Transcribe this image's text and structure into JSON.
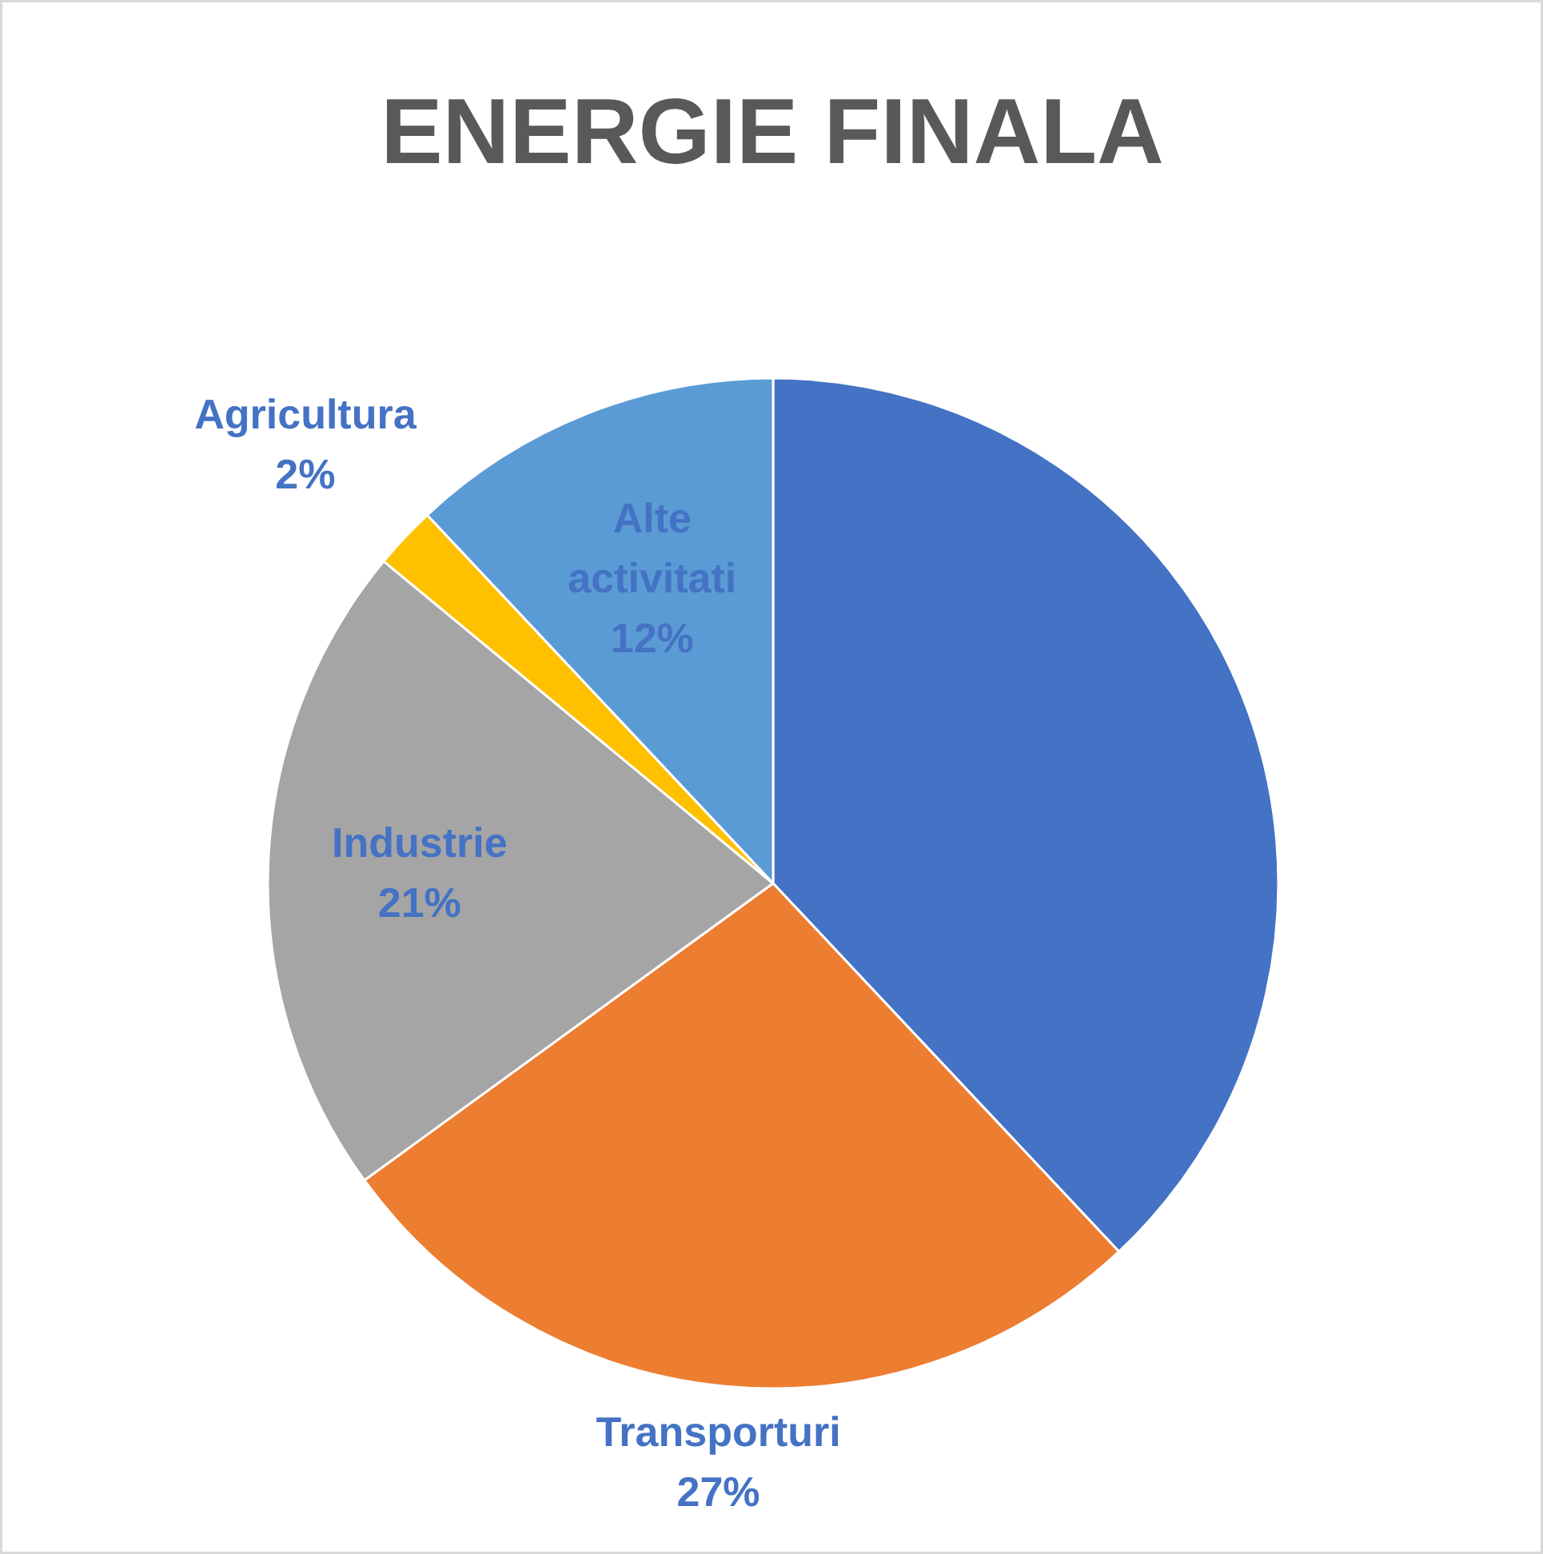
{
  "chart_data": {
    "type": "pie",
    "title": "ENERGIE FINALA",
    "categories": [
      null,
      "Transporturi",
      "Industrie",
      "Agricultura",
      "Alte activitati"
    ],
    "values": [
      38,
      27,
      21,
      2,
      12
    ],
    "colors": [
      "#4472c4",
      "#ed7d31",
      "#a5a5a5",
      "#ffc000",
      "#5b9bd5"
    ],
    "value_labels": [
      null,
      "27%",
      "21%",
      "2%",
      "12%"
    ]
  }
}
